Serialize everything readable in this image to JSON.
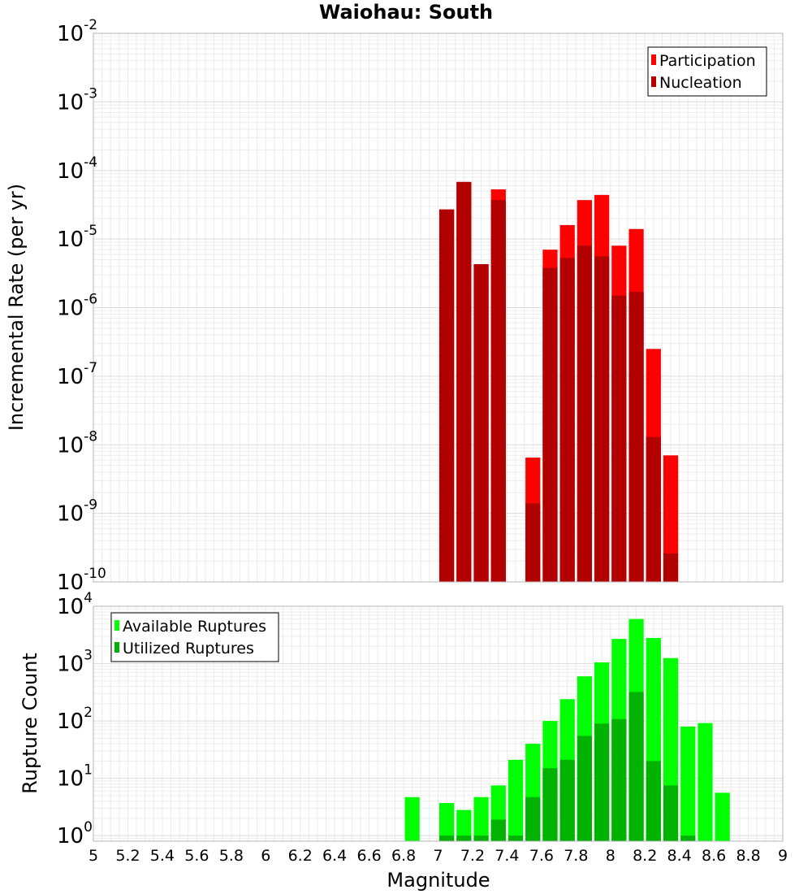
{
  "chart_data": {
    "type": "bar",
    "title": "Waiohau: South",
    "xlabel": "Magnitude",
    "xlim": [
      5,
      9
    ],
    "xticks": [
      "5",
      "5.2",
      "5.4",
      "5.6",
      "5.8",
      "6",
      "6.2",
      "6.4",
      "6.6",
      "6.8",
      "7",
      "7.2",
      "7.4",
      "7.6",
      "7.8",
      "8",
      "8.2",
      "8.4",
      "8.6",
      "8.8",
      "9"
    ],
    "bin_width": 0.1,
    "panels": [
      {
        "name": "rate",
        "ylabel": "Incremental Rate (per yr)",
        "yscale": "log",
        "ylim": [
          1e-10,
          0.01
        ],
        "ytick_exponents": [
          "-10",
          "-9",
          "-8",
          "-7",
          "-6",
          "-5",
          "-4",
          "-3",
          "-2"
        ],
        "legend": {
          "position": "top-right",
          "entries": [
            "Participation",
            "Nucleation"
          ]
        },
        "series": [
          {
            "name": "Participation",
            "color": "#ff0000",
            "x": [
              7.05,
              7.15,
              7.25,
              7.35,
              7.55,
              7.65,
              7.75,
              7.85,
              7.95,
              8.05,
              8.15,
              8.25,
              8.35
            ],
            "values": [
              2.7e-05,
              6.8e-05,
              4.3e-06,
              5.3e-05,
              6.5e-09,
              7e-06,
              1.6e-05,
              3.7e-05,
              4.4e-05,
              8e-06,
              1.4e-05,
              2.5e-07,
              7e-09
            ]
          },
          {
            "name": "Nucleation",
            "color": "#b20000",
            "x": [
              7.05,
              7.15,
              7.25,
              7.35,
              7.55,
              7.65,
              7.75,
              7.85,
              7.95,
              8.05,
              8.15,
              8.25,
              8.35
            ],
            "values": [
              2.7e-05,
              6.8e-05,
              4.3e-06,
              3.7e-05,
              1.4e-09,
              3.8e-06,
              5.3e-06,
              8e-06,
              5.6e-06,
              1.5e-06,
              1.7e-06,
              1.3e-08,
              2.6e-10
            ]
          }
        ]
      },
      {
        "name": "count",
        "ylabel": "Rupture Count",
        "yscale": "log",
        "ylim": [
          0.8,
          10000
        ],
        "ytick_exponents": [
          "0",
          "1",
          "2",
          "3",
          "4"
        ],
        "legend": {
          "position": "top-left",
          "entries": [
            "Available Ruptures",
            "Utilized Ruptures"
          ]
        },
        "series": [
          {
            "name": "Available Ruptures",
            "color": "#00ff00",
            "x": [
              6.85,
              7.05,
              7.15,
              7.25,
              7.35,
              7.45,
              7.55,
              7.65,
              7.75,
              7.85,
              7.95,
              8.05,
              8.15,
              8.25,
              8.35,
              8.45,
              8.55,
              8.65
            ],
            "values": [
              4.7,
              3.7,
              2.8,
              4.7,
              7.5,
              21,
              40,
              100,
              240,
              600,
              1050,
              2700,
              6000,
              2800,
              1250,
              80,
              92,
              5.6
            ]
          },
          {
            "name": "Utilized Ruptures",
            "color": "#00b200",
            "x": [
              7.05,
              7.15,
              7.25,
              7.35,
              7.45,
              7.55,
              7.65,
              7.75,
              7.85,
              7.95,
              8.05,
              8.15,
              8.25,
              8.35,
              8.45
            ],
            "values": [
              1,
              1,
              1,
              1.9,
              1,
              4.7,
              15,
              21,
              55,
              90,
              108,
              320,
              20,
              7.5,
              1
            ]
          }
        ]
      }
    ]
  }
}
